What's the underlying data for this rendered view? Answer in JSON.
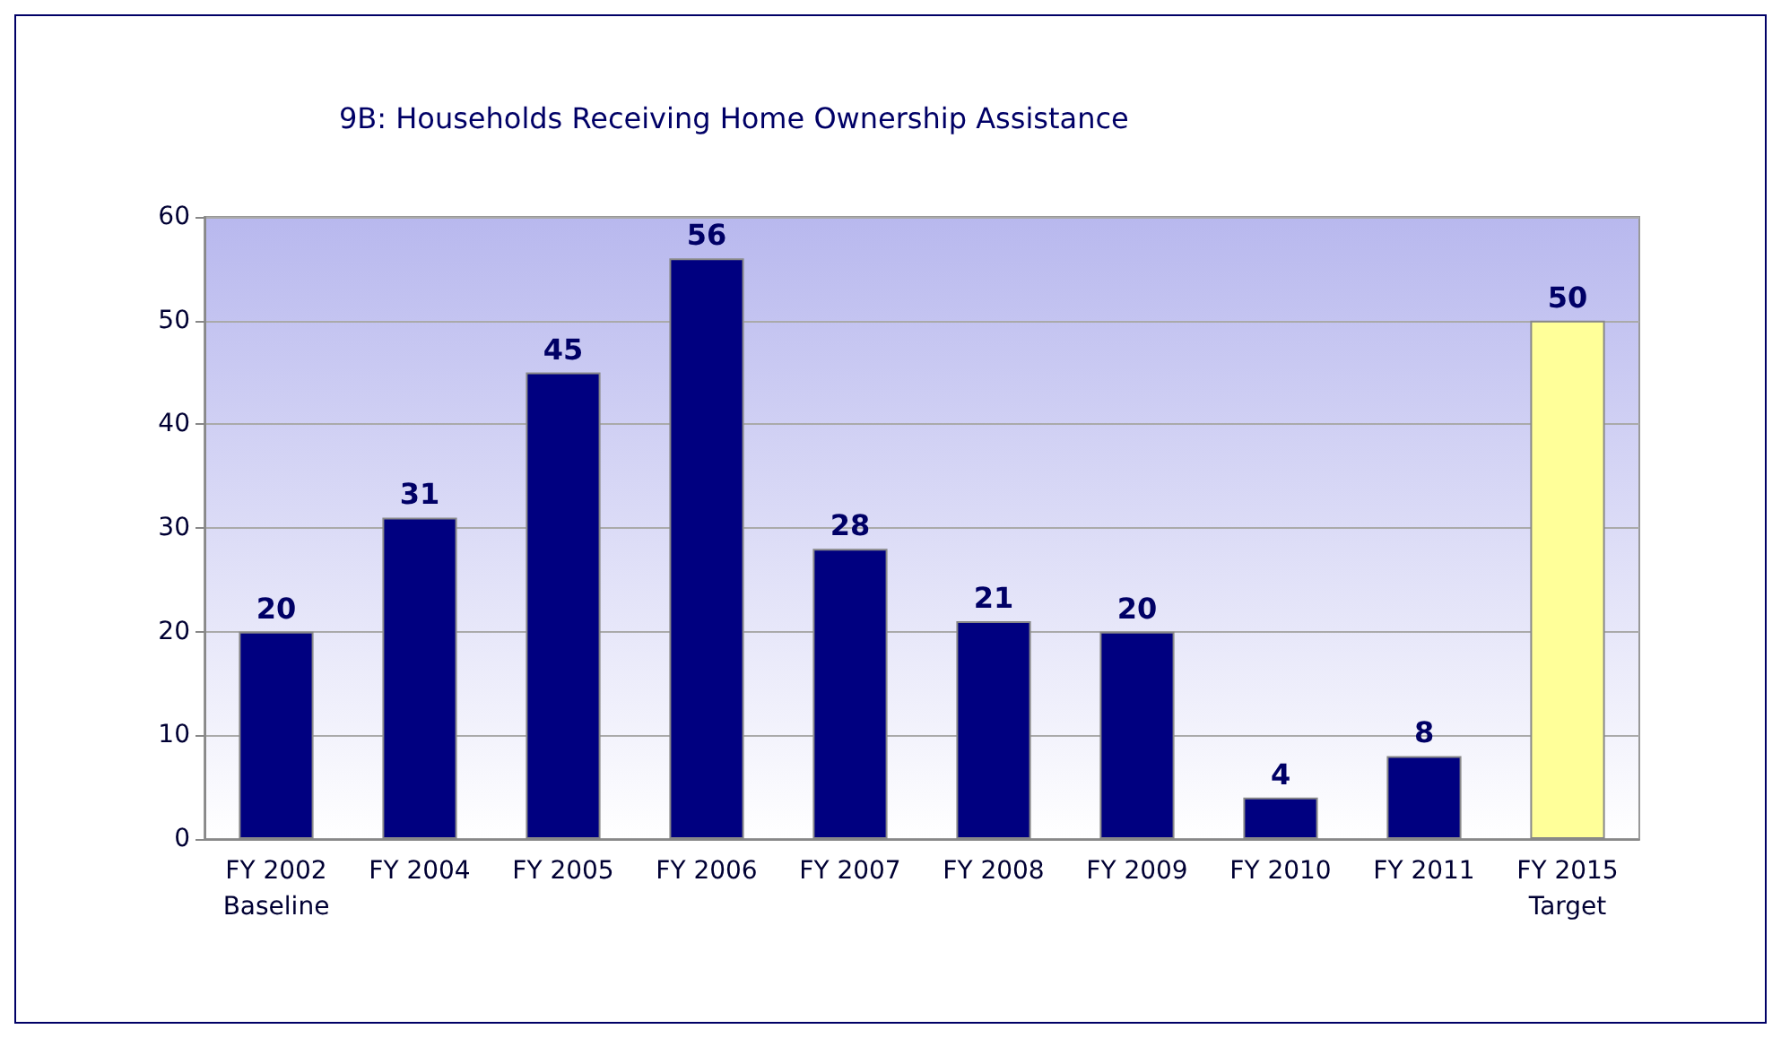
{
  "chart_data": {
    "type": "bar",
    "title": "9B: Households Receiving Home Ownership Assistance",
    "categories": [
      "FY 2002\nBaseline",
      "FY 2004",
      "FY 2005",
      "FY 2006",
      "FY 2007",
      "FY 2008",
      "FY 2009",
      "FY 2010",
      "FY 2011",
      "FY 2015\nTarget"
    ],
    "values": [
      20,
      31,
      45,
      56,
      28,
      21,
      20,
      4,
      8,
      50
    ],
    "colors": [
      "#000080",
      "#000080",
      "#000080",
      "#000080",
      "#000080",
      "#000080",
      "#000080",
      "#000080",
      "#000080",
      "#ffff99"
    ],
    "ylim": [
      0,
      60
    ],
    "yticks": [
      0,
      10,
      20,
      30,
      40,
      50,
      60
    ],
    "grid": "y",
    "data_labels": true
  }
}
